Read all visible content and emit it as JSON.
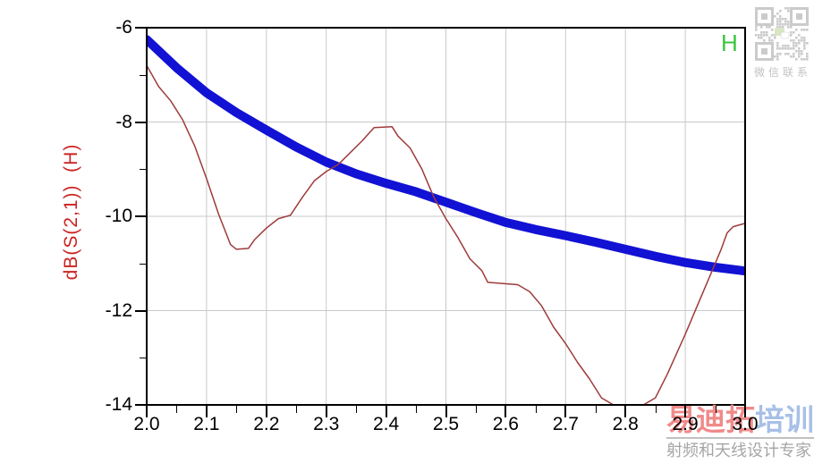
{
  "chart_data": {
    "type": "line",
    "title": "",
    "xlabel": "",
    "ylabel": "dB(S(2,1))  (H)",
    "xlim": [
      2.0,
      3.0
    ],
    "ylim": [
      -14,
      -6
    ],
    "x_ticks": [
      2.0,
      2.1,
      2.2,
      2.3,
      2.4,
      2.5,
      2.6,
      2.7,
      2.8,
      2.9,
      3.0
    ],
    "x_tick_labels": [
      "2.0",
      "2.1",
      "2.2",
      "2.3",
      "2.4",
      "2.5",
      "2.6",
      "2.7",
      "2.8",
      "2.9",
      "3.0"
    ],
    "x_minor_ticks": [
      2.05,
      2.15,
      2.25,
      2.35,
      2.45,
      2.55,
      2.65,
      2.75,
      2.85,
      2.95
    ],
    "y_ticks": [
      -6,
      -8,
      -10,
      -12,
      -14
    ],
    "y_tick_labels": [
      "-6",
      "-8",
      "-10",
      "-12",
      "-14"
    ],
    "y_minor_ticks": [
      -7,
      -9,
      -11,
      -13
    ],
    "grid": {
      "vertical_at": [
        2.1,
        2.2,
        2.3,
        2.4,
        2.5,
        2.6,
        2.7,
        2.8,
        2.9
      ],
      "horizontal_at": [
        -8,
        -10,
        -12
      ],
      "color": "#C9C9C9"
    },
    "legend": {
      "label": "H",
      "color": "#3CC43C",
      "position": "top-right-inside"
    },
    "series": [
      {
        "name": "smooth-thick-trace",
        "color": "#1212D4",
        "width": 10,
        "points": [
          [
            2.0,
            -6.25
          ],
          [
            2.05,
            -6.85
          ],
          [
            2.1,
            -7.38
          ],
          [
            2.15,
            -7.8
          ],
          [
            2.2,
            -8.17
          ],
          [
            2.25,
            -8.53
          ],
          [
            2.3,
            -8.85
          ],
          [
            2.35,
            -9.1
          ],
          [
            2.4,
            -9.3
          ],
          [
            2.45,
            -9.48
          ],
          [
            2.5,
            -9.7
          ],
          [
            2.55,
            -9.92
          ],
          [
            2.6,
            -10.13
          ],
          [
            2.65,
            -10.28
          ],
          [
            2.7,
            -10.41
          ],
          [
            2.75,
            -10.55
          ],
          [
            2.8,
            -10.7
          ],
          [
            2.85,
            -10.85
          ],
          [
            2.9,
            -10.98
          ],
          [
            2.95,
            -11.08
          ],
          [
            3.0,
            -11.16
          ]
        ]
      },
      {
        "name": "ripple-thin-trace",
        "color": "#9E3B3B",
        "width": 1.5,
        "points": [
          [
            2.0,
            -6.8
          ],
          [
            2.02,
            -7.25
          ],
          [
            2.04,
            -7.55
          ],
          [
            2.06,
            -7.95
          ],
          [
            2.08,
            -8.5
          ],
          [
            2.1,
            -9.2
          ],
          [
            2.12,
            -9.95
          ],
          [
            2.14,
            -10.6
          ],
          [
            2.15,
            -10.7
          ],
          [
            2.17,
            -10.68
          ],
          [
            2.18,
            -10.5
          ],
          [
            2.2,
            -10.25
          ],
          [
            2.22,
            -10.05
          ],
          [
            2.24,
            -9.98
          ],
          [
            2.26,
            -9.6
          ],
          [
            2.28,
            -9.25
          ],
          [
            2.3,
            -9.05
          ],
          [
            2.32,
            -8.9
          ],
          [
            2.34,
            -8.65
          ],
          [
            2.36,
            -8.4
          ],
          [
            2.38,
            -8.12
          ],
          [
            2.41,
            -8.1
          ],
          [
            2.42,
            -8.3
          ],
          [
            2.44,
            -8.55
          ],
          [
            2.46,
            -9.0
          ],
          [
            2.48,
            -9.6
          ],
          [
            2.5,
            -10.05
          ],
          [
            2.52,
            -10.45
          ],
          [
            2.54,
            -10.9
          ],
          [
            2.56,
            -11.15
          ],
          [
            2.57,
            -11.4
          ],
          [
            2.62,
            -11.45
          ],
          [
            2.64,
            -11.6
          ],
          [
            2.66,
            -11.9
          ],
          [
            2.68,
            -12.35
          ],
          [
            2.7,
            -12.7
          ],
          [
            2.72,
            -13.1
          ],
          [
            2.74,
            -13.45
          ],
          [
            2.76,
            -13.85
          ],
          [
            2.78,
            -14.0
          ],
          [
            2.83,
            -14.0
          ],
          [
            2.85,
            -13.85
          ],
          [
            2.87,
            -13.35
          ],
          [
            2.9,
            -12.5
          ],
          [
            2.92,
            -11.9
          ],
          [
            2.94,
            -11.3
          ],
          [
            2.96,
            -10.7
          ],
          [
            2.97,
            -10.35
          ],
          [
            2.98,
            -10.22
          ],
          [
            3.0,
            -10.15
          ]
        ]
      }
    ]
  },
  "overlay": {
    "qr_caption": "微信联系",
    "watermark_main_red": "易迪拓",
    "watermark_main_blue": "培训",
    "watermark_subtitle": "射频和天线设计专家"
  },
  "colors": {
    "axis": "#000000",
    "grid": "#C9C9C9",
    "ylabel_text": "#CC2222",
    "legend_green": "#3CC43C",
    "qr_gray": "#CBCBCB",
    "watermark_pink": "#F08A8A",
    "watermark_blue": "#A8C0E8",
    "watermark_sub_gray": "#A5A5A5"
  }
}
